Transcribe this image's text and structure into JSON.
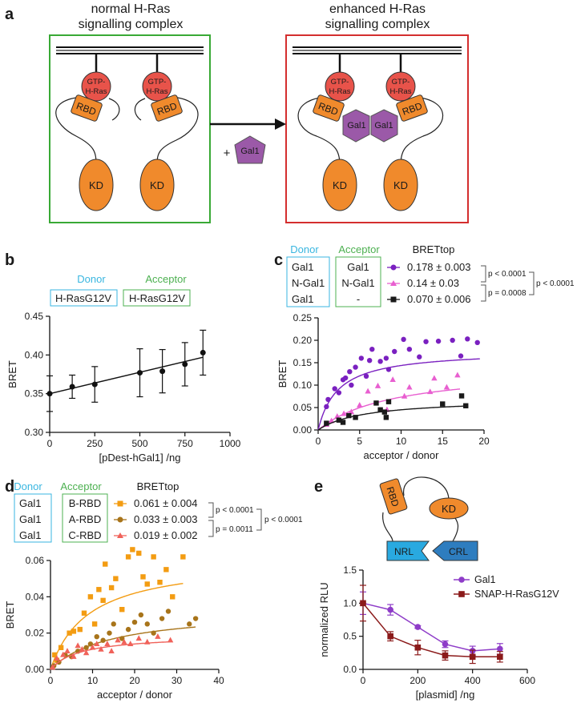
{
  "colors": {
    "orange": "#F08A2C",
    "red_sphere": "#E8534A",
    "purple": "#9B59A8",
    "donor_cyan": "#39B6E0",
    "acceptor_green": "#4CB050",
    "panel_green": "#39A935",
    "panel_red": "#D42E2E",
    "magenta": "#E85FD0",
    "dark_purple": "#7A20C0",
    "black": "#1A1A1A",
    "b_orange": "#F39C12",
    "a_brown": "#A8741A",
    "c_salmon": "#F0625A",
    "gal1_purple": "#8E3CC8",
    "snap_red": "#8B1A1A",
    "nrl_blue": "#29A9E0",
    "crl_blue": "#2E7DBF"
  },
  "panel_a": {
    "letter": "a",
    "left_title_1": "normal H-Ras",
    "left_title_2": "signalling complex",
    "right_title_1": "enhanced H-Ras",
    "right_title_2": "signalling complex",
    "gtp_1": "GTP-",
    "gtp_2": "H-Ras",
    "rbd": "RBD",
    "kd": "KD",
    "gal1": "Gal1",
    "plus": "+"
  },
  "panel_b": {
    "letter": "b",
    "donor_label": "Donor",
    "acceptor_label": "Acceptor",
    "donor_value": "H-RasG12V",
    "acceptor_value": "H-RasG12V"
  },
  "panel_c": {
    "letter": "c",
    "donor_label": "Donor",
    "acceptor_label": "Acceptor",
    "bret_header": "BRETtop",
    "donors": [
      "Gal1",
      "N-Gal1",
      "Gal1"
    ],
    "acceptors": [
      "Gal1",
      "N-Gal1",
      "-"
    ],
    "bret_values": [
      "0.178 ± 0.003",
      "0.14 ± 0.03",
      "0.070 ± 0.006"
    ],
    "p_12": "p < 0.0001",
    "p_23": "p = 0.0008",
    "p_13": "p < 0.0001"
  },
  "panel_d": {
    "letter": "d",
    "donor_label": "Donor",
    "acceptor_label": "Acceptor",
    "bret_header": "BRETtop",
    "donors": [
      "Gal1",
      "Gal1",
      "Gal1"
    ],
    "acceptors": [
      "B-RBD",
      "A-RBD",
      "C-RBD"
    ],
    "bret_values": [
      "0.061 ± 0.004",
      "0.033 ± 0.003",
      "0.019 ± 0.002"
    ],
    "p_12": "p < 0.0001",
    "p_23": "p = 0.0011",
    "p_13": "p < 0.0001"
  },
  "panel_e": {
    "letter": "e",
    "rbd": "RBD",
    "kd": "KD",
    "nrl": "NRL",
    "crl": "CRL"
  },
  "chart_data": [
    {
      "id": "b",
      "type": "scatter",
      "title": "",
      "xlabel": "[pDest-hGal1] /ng",
      "ylabel": "BRET",
      "xlim": [
        0,
        1000
      ],
      "ylim": [
        0.3,
        0.45
      ],
      "xticks": [
        0,
        250,
        500,
        750,
        1000
      ],
      "xtick_labels": [
        "0",
        "250",
        "500",
        "750",
        "1000"
      ],
      "yticks": [
        0.3,
        0.35,
        0.4,
        0.45
      ],
      "ytick_labels": [
        "0.30",
        "0.35",
        "0.40",
        "0.45"
      ],
      "x": [
        0,
        125,
        250,
        500,
        625,
        750,
        850
      ],
      "y": [
        0.35,
        0.359,
        0.362,
        0.377,
        0.379,
        0.388,
        0.403
      ],
      "err": [
        0.023,
        0.015,
        0.023,
        0.031,
        0.028,
        0.028,
        0.029
      ],
      "fit": {
        "x0": 0,
        "y0": 0.35,
        "x1": 850,
        "y1": 0.397
      }
    },
    {
      "id": "c",
      "type": "scatter",
      "xlabel": "acceptor / donor",
      "ylabel": "BRET",
      "xlim": [
        0,
        20
      ],
      "ylim": [
        0,
        0.25
      ],
      "xticks": [
        0,
        5,
        10,
        15,
        20
      ],
      "xtick_labels": [
        "0",
        "5",
        "10",
        "15",
        "20"
      ],
      "yticks": [
        0,
        0.05,
        0.1,
        0.15,
        0.2,
        0.25
      ],
      "ytick_labels": [
        "0.00",
        "0.05",
        "0.10",
        "0.15",
        "0.20",
        "0.25"
      ],
      "series": [
        {
          "name": "Gal1 / Gal1",
          "color": "#7A20C0",
          "marker": "circle",
          "x": [
            1.0,
            1.2,
            2.0,
            2.5,
            3.0,
            3.3,
            3.8,
            4.0,
            4.5,
            5.2,
            5.8,
            6.2,
            6.5,
            7.5,
            8.2,
            8.5,
            9.2,
            10.3,
            11.0,
            12.2,
            13.0,
            14.5,
            16.2,
            17.2,
            18.0,
            19.2
          ],
          "y": [
            0.052,
            0.068,
            0.092,
            0.083,
            0.112,
            0.116,
            0.13,
            0.1,
            0.14,
            0.16,
            0.12,
            0.155,
            0.18,
            0.153,
            0.16,
            0.135,
            0.175,
            0.202,
            0.18,
            0.163,
            0.197,
            0.198,
            0.2,
            0.165,
            0.203,
            0.195
          ],
          "fit": {
            "top": 0.178,
            "k": 0.42
          }
        },
        {
          "name": "N-Gal1 / N-Gal1",
          "color": "#E85FD0",
          "marker": "triangle",
          "x": [
            1.0,
            1.6,
            2.3,
            3.1,
            4.0,
            5.0,
            6.0,
            7.2,
            8.3,
            9.0,
            10.4,
            11.0,
            13.5,
            14.0,
            15.5,
            16.8
          ],
          "y": [
            0.012,
            0.02,
            0.03,
            0.036,
            0.04,
            0.055,
            0.086,
            0.098,
            0.045,
            0.112,
            0.075,
            0.095,
            0.085,
            0.115,
            0.095,
            0.122
          ],
          "fit": {
            "top": 0.14,
            "k": 0.11
          }
        },
        {
          "name": "Gal1 / -",
          "color": "#1A1A1A",
          "marker": "square",
          "x": [
            1.0,
            2.5,
            3.0,
            3.7,
            4.5,
            7.0,
            7.5,
            8.0,
            8.2,
            8.5,
            15.0,
            17.3,
            17.8
          ],
          "y": [
            0.015,
            0.022,
            0.017,
            0.032,
            0.028,
            0.06,
            0.045,
            0.04,
            0.028,
            0.063,
            0.058,
            0.076,
            0.054
          ],
          "fit": {
            "top": 0.07,
            "k": 0.18
          }
        }
      ]
    },
    {
      "id": "d",
      "type": "scatter",
      "xlabel": "acceptor / donor",
      "ylabel": "BRET",
      "xlim": [
        0,
        40
      ],
      "ylim": [
        0,
        0.06
      ],
      "xticks": [
        0,
        10,
        20,
        30,
        40
      ],
      "xtick_labels": [
        "0",
        "10",
        "20",
        "30",
        "40"
      ],
      "yticks": [
        0,
        0.02,
        0.04,
        0.06
      ],
      "ytick_labels": [
        "0.00",
        "0.02",
        "0.04",
        "0.06"
      ],
      "series": [
        {
          "name": "B-RBD",
          "color": "#F39C12",
          "marker": "square",
          "x": [
            1.0,
            1.5,
            2.5,
            4.5,
            5.5,
            7.0,
            8.0,
            9.5,
            10.5,
            11.5,
            12.5,
            13.0,
            14.5,
            15.5,
            17.0,
            18.5,
            19.5,
            21.0,
            22.0,
            23.0,
            24.5,
            26.0,
            27.5,
            29.0,
            31.5
          ],
          "y": [
            0.008,
            0.005,
            0.012,
            0.02,
            0.021,
            0.022,
            0.031,
            0.04,
            0.025,
            0.044,
            0.038,
            0.058,
            0.045,
            0.05,
            0.033,
            0.062,
            0.066,
            0.064,
            0.051,
            0.047,
            0.062,
            0.048,
            0.055,
            0.04,
            0.062
          ],
          "fit": {
            "top": 0.061,
            "k": 0.11
          }
        },
        {
          "name": "A-RBD",
          "color": "#A8741A",
          "marker": "circle",
          "x": [
            0.8,
            2.0,
            3.5,
            5.0,
            6.5,
            8.5,
            9.5,
            11.0,
            12.5,
            14.0,
            15.0,
            17.0,
            18.5,
            20.0,
            21.5,
            23.0,
            24.5,
            26.5,
            28.0,
            33.0,
            34.5
          ],
          "y": [
            0.002,
            0.004,
            0.008,
            0.007,
            0.01,
            0.012,
            0.014,
            0.018,
            0.016,
            0.02,
            0.025,
            0.017,
            0.022,
            0.026,
            0.03,
            0.025,
            0.02,
            0.028,
            0.032,
            0.025,
            0.028
          ],
          "fit": {
            "top": 0.033,
            "k": 0.07
          }
        },
        {
          "name": "C-RBD",
          "color": "#F0625A",
          "marker": "triangle",
          "x": [
            0.5,
            1.5,
            3.0,
            4.0,
            5.5,
            6.5,
            7.5,
            8.5,
            10.0,
            11.0,
            12.0,
            13.5,
            14.5,
            16.0,
            17.5,
            19.0,
            21.0,
            23.0,
            25.5,
            28.5
          ],
          "y": [
            0.001,
            0.006,
            0.008,
            0.01,
            0.007,
            0.013,
            0.011,
            0.009,
            0.012,
            0.014,
            0.011,
            0.014,
            0.01,
            0.016,
            0.015,
            0.014,
            0.017,
            0.015,
            0.018,
            0.016
          ],
          "fit": {
            "top": 0.019,
            "k": 0.14
          }
        }
      ]
    },
    {
      "id": "e",
      "type": "line",
      "xlabel": "[plasmid] /ng",
      "ylabel": "normalized RLU",
      "xlim": [
        0,
        600
      ],
      "ylim": [
        0,
        1.5
      ],
      "xticks": [
        0,
        200,
        400,
        600
      ],
      "xtick_labels": [
        "0",
        "200",
        "400",
        "600"
      ],
      "yticks": [
        0,
        0.5,
        1.0,
        1.5
      ],
      "ytick_labels": [
        "0.0",
        "0.5",
        "1.0",
        "1.5"
      ],
      "series": [
        {
          "name": "Gal1",
          "color": "#8E3CC8",
          "marker": "circle",
          "x": [
            0,
            100,
            200,
            300,
            400,
            500
          ],
          "y": [
            1.0,
            0.9,
            0.64,
            0.38,
            0.28,
            0.31
          ],
          "err": [
            0.17,
            0.08,
            0.02,
            0.05,
            0.07,
            0.08
          ]
        },
        {
          "name": "SNAP-H-RasG12V",
          "color": "#8B1A1A",
          "marker": "square",
          "x": [
            0,
            100,
            200,
            300,
            400,
            500
          ],
          "y": [
            1.0,
            0.5,
            0.33,
            0.21,
            0.19,
            0.19
          ],
          "err": [
            0.27,
            0.07,
            0.11,
            0.07,
            0.1,
            0.08
          ]
        }
      ]
    }
  ]
}
